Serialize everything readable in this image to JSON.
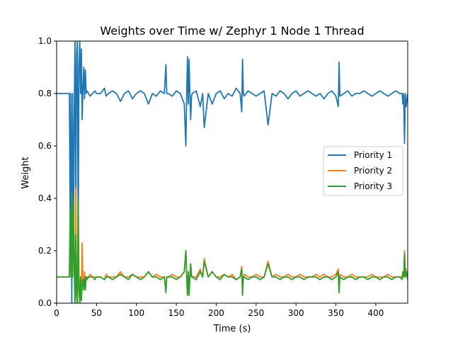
{
  "chart_data": {
    "type": "line",
    "title": "Weights over Time w/ Zephyr 1 Node 1 Thread",
    "xlabel": "Time (s)",
    "ylabel": "Weight",
    "xlim": [
      0,
      440
    ],
    "ylim": [
      0.0,
      1.0
    ],
    "xticks": [
      0,
      50,
      100,
      150,
      200,
      250,
      300,
      350,
      400
    ],
    "yticks": [
      0.0,
      0.2,
      0.4,
      0.6,
      0.8,
      1.0
    ],
    "xtick_labels": [
      "0",
      "50",
      "100",
      "150",
      "200",
      "250",
      "300",
      "350",
      "400"
    ],
    "ytick_labels": [
      "0.0",
      "0.2",
      "0.4",
      "0.6",
      "0.8",
      "1.0"
    ],
    "grid": false,
    "legend_position": "center-right",
    "series": [
      {
        "name": "Priority 1",
        "color": "#1f77b4",
        "x": [
          0,
          15,
          16,
          17,
          18,
          19,
          20,
          21,
          22,
          23,
          24,
          25,
          26,
          27,
          28,
          29,
          30,
          31,
          32,
          33,
          34,
          35,
          36,
          37,
          38,
          40,
          42,
          45,
          48,
          50,
          55,
          60,
          62,
          65,
          70,
          75,
          80,
          85,
          90,
          95,
          100,
          105,
          110,
          115,
          120,
          125,
          130,
          135,
          137,
          138,
          140,
          145,
          150,
          155,
          160,
          162,
          163,
          164,
          165,
          166,
          167,
          168,
          169,
          170,
          175,
          180,
          183,
          185,
          190,
          195,
          200,
          205,
          210,
          215,
          220,
          225,
          230,
          232,
          233,
          234,
          235,
          240,
          245,
          250,
          255,
          260,
          265,
          270,
          275,
          280,
          285,
          290,
          295,
          300,
          305,
          310,
          315,
          320,
          325,
          330,
          335,
          340,
          345,
          350,
          353,
          354,
          355,
          360,
          365,
          370,
          375,
          380,
          385,
          390,
          395,
          400,
          405,
          410,
          415,
          420,
          425,
          430,
          433,
          434,
          435,
          436,
          437,
          438,
          440
        ],
        "y": [
          0.8,
          0.8,
          0.8,
          0.3,
          0.8,
          0.0,
          0.8,
          0.2,
          0.7,
          1.0,
          0.3,
          0.95,
          1.0,
          0.2,
          0.9,
          1.0,
          0.8,
          0.97,
          0.7,
          0.82,
          0.9,
          0.78,
          0.89,
          0.8,
          0.81,
          0.8,
          0.79,
          0.8,
          0.81,
          0.8,
          0.8,
          0.82,
          0.79,
          0.8,
          0.81,
          0.8,
          0.77,
          0.8,
          0.81,
          0.78,
          0.8,
          0.81,
          0.8,
          0.76,
          0.8,
          0.79,
          0.81,
          0.8,
          0.91,
          0.8,
          0.8,
          0.79,
          0.81,
          0.8,
          0.76,
          0.6,
          0.8,
          0.94,
          0.76,
          0.93,
          0.8,
          0.7,
          0.79,
          0.8,
          0.81,
          0.75,
          0.8,
          0.67,
          0.8,
          0.76,
          0.8,
          0.81,
          0.78,
          0.8,
          0.79,
          0.82,
          0.8,
          0.73,
          0.93,
          0.8,
          0.79,
          0.81,
          0.8,
          0.79,
          0.8,
          0.81,
          0.68,
          0.8,
          0.79,
          0.81,
          0.8,
          0.78,
          0.8,
          0.81,
          0.79,
          0.8,
          0.81,
          0.8,
          0.79,
          0.8,
          0.78,
          0.8,
          0.81,
          0.79,
          0.75,
          0.92,
          0.79,
          0.8,
          0.81,
          0.79,
          0.8,
          0.8,
          0.81,
          0.8,
          0.79,
          0.8,
          0.81,
          0.8,
          0.79,
          0.8,
          0.81,
          0.8,
          0.8,
          0.76,
          0.8,
          0.61,
          0.8,
          0.75,
          0.8
        ]
      },
      {
        "name": "Priority 2",
        "color": "#ff7f0e",
        "x": [
          0,
          15,
          16,
          17,
          18,
          19,
          20,
          21,
          22,
          23,
          24,
          25,
          26,
          27,
          28,
          29,
          30,
          31,
          32,
          33,
          34,
          35,
          36,
          37,
          38,
          40,
          42,
          45,
          48,
          50,
          55,
          60,
          62,
          65,
          70,
          75,
          80,
          85,
          90,
          95,
          100,
          105,
          110,
          115,
          120,
          125,
          130,
          135,
          137,
          138,
          140,
          145,
          150,
          155,
          160,
          162,
          163,
          164,
          165,
          166,
          167,
          168,
          169,
          170,
          175,
          180,
          183,
          185,
          190,
          195,
          200,
          205,
          210,
          215,
          220,
          225,
          230,
          232,
          233,
          234,
          235,
          240,
          245,
          250,
          255,
          260,
          265,
          270,
          275,
          280,
          285,
          290,
          295,
          300,
          305,
          310,
          315,
          320,
          325,
          330,
          335,
          340,
          345,
          350,
          353,
          354,
          355,
          360,
          365,
          370,
          375,
          380,
          385,
          390,
          395,
          400,
          405,
          410,
          415,
          420,
          425,
          430,
          433,
          434,
          435,
          436,
          437,
          438,
          440
        ],
        "y": [
          0.1,
          0.1,
          0.1,
          0.35,
          0.1,
          0.4,
          0.1,
          0.33,
          0.15,
          0.0,
          0.44,
          0.03,
          0.0,
          0.4,
          0.05,
          0.0,
          0.1,
          0.02,
          0.23,
          0.09,
          0.05,
          0.12,
          0.06,
          0.1,
          0.1,
          0.1,
          0.11,
          0.1,
          0.1,
          0.1,
          0.1,
          0.09,
          0.11,
          0.1,
          0.1,
          0.1,
          0.12,
          0.1,
          0.1,
          0.11,
          0.1,
          0.1,
          0.1,
          0.12,
          0.1,
          0.11,
          0.1,
          0.1,
          0.05,
          0.1,
          0.1,
          0.11,
          0.1,
          0.1,
          0.12,
          0.2,
          0.1,
          0.03,
          0.12,
          0.04,
          0.1,
          0.15,
          0.11,
          0.1,
          0.1,
          0.13,
          0.1,
          0.17,
          0.1,
          0.12,
          0.1,
          0.1,
          0.11,
          0.1,
          0.11,
          0.09,
          0.1,
          0.14,
          0.04,
          0.1,
          0.11,
          0.1,
          0.1,
          0.11,
          0.1,
          0.1,
          0.16,
          0.1,
          0.11,
          0.1,
          0.1,
          0.11,
          0.1,
          0.1,
          0.11,
          0.1,
          0.1,
          0.1,
          0.11,
          0.1,
          0.11,
          0.1,
          0.1,
          0.11,
          0.13,
          0.04,
          0.11,
          0.1,
          0.1,
          0.11,
          0.1,
          0.1,
          0.1,
          0.1,
          0.11,
          0.1,
          0.1,
          0.1,
          0.11,
          0.1,
          0.1,
          0.1,
          0.1,
          0.12,
          0.1,
          0.2,
          0.1,
          0.13,
          0.1
        ]
      },
      {
        "name": "Priority 3",
        "color": "#2ca02c",
        "x": [
          0,
          15,
          16,
          17,
          18,
          19,
          20,
          21,
          22,
          23,
          24,
          25,
          26,
          27,
          28,
          29,
          30,
          31,
          32,
          33,
          34,
          35,
          36,
          37,
          38,
          40,
          42,
          45,
          48,
          50,
          55,
          60,
          62,
          65,
          70,
          75,
          80,
          85,
          90,
          95,
          100,
          105,
          110,
          115,
          120,
          125,
          130,
          135,
          137,
          138,
          140,
          145,
          150,
          155,
          160,
          162,
          163,
          164,
          165,
          166,
          167,
          168,
          169,
          170,
          175,
          180,
          183,
          185,
          190,
          195,
          200,
          205,
          210,
          215,
          220,
          225,
          230,
          232,
          233,
          234,
          235,
          240,
          245,
          250,
          255,
          260,
          265,
          270,
          275,
          280,
          285,
          290,
          295,
          300,
          305,
          310,
          315,
          320,
          325,
          330,
          335,
          340,
          345,
          350,
          353,
          354,
          355,
          360,
          365,
          370,
          375,
          380,
          385,
          390,
          395,
          400,
          405,
          410,
          415,
          420,
          425,
          430,
          433,
          434,
          435,
          436,
          437,
          438,
          440
        ],
        "y": [
          0.1,
          0.1,
          0.1,
          0.35,
          0.1,
          0.42,
          0.1,
          0.38,
          0.15,
          0.0,
          0.26,
          0.02,
          0.0,
          0.4,
          0.05,
          0.0,
          0.1,
          0.01,
          0.07,
          0.09,
          0.05,
          0.1,
          0.05,
          0.1,
          0.09,
          0.1,
          0.1,
          0.1,
          0.09,
          0.1,
          0.1,
          0.09,
          0.1,
          0.1,
          0.09,
          0.1,
          0.11,
          0.1,
          0.09,
          0.11,
          0.1,
          0.09,
          0.1,
          0.12,
          0.1,
          0.1,
          0.09,
          0.1,
          0.04,
          0.1,
          0.1,
          0.1,
          0.09,
          0.1,
          0.12,
          0.2,
          0.1,
          0.03,
          0.12,
          0.03,
          0.1,
          0.15,
          0.1,
          0.1,
          0.09,
          0.12,
          0.1,
          0.16,
          0.1,
          0.12,
          0.1,
          0.09,
          0.11,
          0.1,
          0.1,
          0.09,
          0.1,
          0.13,
          0.03,
          0.1,
          0.1,
          0.09,
          0.1,
          0.1,
          0.09,
          0.1,
          0.15,
          0.1,
          0.1,
          0.09,
          0.1,
          0.1,
          0.09,
          0.1,
          0.1,
          0.09,
          0.1,
          0.1,
          0.1,
          0.09,
          0.1,
          0.1,
          0.09,
          0.1,
          0.12,
          0.04,
          0.1,
          0.09,
          0.1,
          0.1,
          0.09,
          0.1,
          0.1,
          0.09,
          0.1,
          0.1,
          0.09,
          0.1,
          0.1,
          0.09,
          0.1,
          0.1,
          0.09,
          0.12,
          0.1,
          0.19,
          0.1,
          0.12,
          0.09
        ]
      }
    ]
  }
}
